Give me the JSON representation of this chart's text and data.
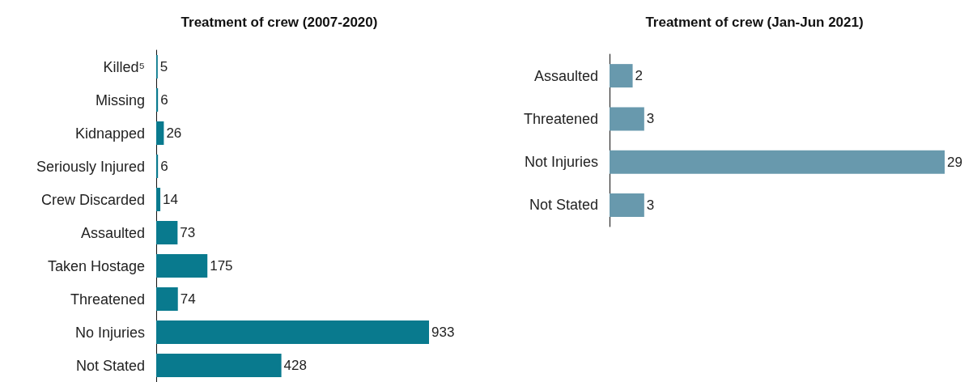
{
  "chart_data": [
    {
      "type": "bar",
      "orientation": "horizontal",
      "title": "Treatment of crew (2007-2020)",
      "categories": [
        "Killed⁵",
        "Missing",
        "Kidnapped",
        "Seriously Injured",
        "Crew Discarded",
        "Assaulted",
        "Taken Hostage",
        "Threatened",
        "No Injuries",
        "Not Stated"
      ],
      "values": [
        5,
        6,
        26,
        6,
        14,
        73,
        175,
        74,
        933,
        428
      ],
      "color": "#097a8e",
      "data_labels": true
    },
    {
      "type": "bar",
      "orientation": "horizontal",
      "title": "Treatment of crew (Jan-Jun 2021)",
      "categories": [
        "Assaulted",
        "Threatened",
        "Not Injuries",
        "Not Stated"
      ],
      "values": [
        2,
        3,
        29,
        3
      ],
      "color": "#6899ad",
      "data_labels": true
    }
  ]
}
